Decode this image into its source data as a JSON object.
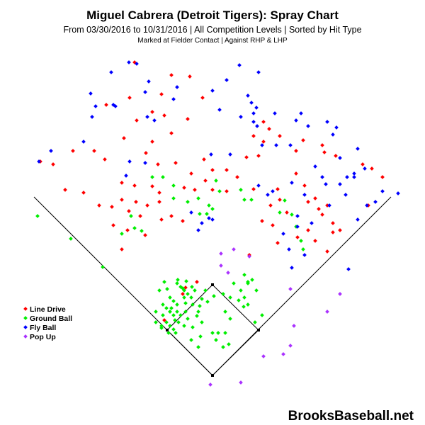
{
  "chart_data": {
    "type": "scatter",
    "title": "Miguel Cabrera (Detroit Tigers): Spray Chart",
    "subtitle": "From 03/30/2016 to 10/31/2016 | All Competition Levels | Sorted by Hit Type",
    "note": "Marked at Fielder Contact |   Against RHP & LHP",
    "watermark": "BrooksBaseball.net",
    "legend_position": "left",
    "series": [
      {
        "name": "Line Drive",
        "color": "#ff0000",
        "points": [
          [
            190,
            88
          ],
          [
            242,
            106
          ],
          [
            268,
            108
          ],
          [
            183,
            138
          ],
          [
            228,
            133
          ],
          [
            286,
            138
          ],
          [
            150,
            148
          ],
          [
            215,
            158
          ],
          [
            232,
            163
          ],
          [
            193,
            170
          ],
          [
            265,
            168
          ],
          [
            175,
            195
          ],
          [
            242,
            188
          ],
          [
            215,
            200
          ],
          [
            103,
            213
          ],
          [
            133,
            213
          ],
          [
            148,
            225
          ],
          [
            57,
            228
          ],
          [
            75,
            232
          ],
          [
            206,
            216
          ],
          [
            223,
            232
          ],
          [
            248,
            230
          ],
          [
            288,
            225
          ],
          [
            270,
            245
          ],
          [
            300,
            240
          ],
          [
            320,
            240
          ],
          [
            290,
            255
          ],
          [
            335,
            250
          ],
          [
            260,
            265
          ],
          [
            275,
            268
          ],
          [
            300,
            268
          ],
          [
            320,
            270
          ],
          [
            92,
            268
          ],
          [
            118,
            272
          ],
          [
            172,
            258
          ],
          [
            190,
            262
          ],
          [
            215,
            263
          ],
          [
            140,
            290
          ],
          [
            158,
            292
          ],
          [
            182,
            298
          ],
          [
            198,
            305
          ],
          [
            208,
            290
          ],
          [
            225,
            285
          ],
          [
            160,
            318
          ],
          [
            180,
            325
          ],
          [
            172,
            352
          ],
          [
            205,
            332
          ],
          [
            228,
            310
          ],
          [
            242,
            305
          ],
          [
            258,
            312
          ],
          [
            225,
            272
          ],
          [
            172,
            282
          ],
          [
            192,
            285
          ],
          [
            358,
            192
          ],
          [
            372,
            200
          ],
          [
            395,
            192
          ],
          [
            348,
            222
          ],
          [
            365,
            220
          ],
          [
            418,
            213
          ],
          [
            455,
            205
          ],
          [
            458,
            215
          ],
          [
            474,
            220
          ],
          [
            512,
            232
          ],
          [
            525,
            238
          ],
          [
            358,
            267
          ],
          [
            392,
            267
          ],
          [
            382,
            290
          ],
          [
            405,
            300
          ],
          [
            435,
            285
          ],
          [
            455,
            303
          ],
          [
            370,
            312
          ],
          [
            385,
            318
          ],
          [
            392,
            343
          ],
          [
            420,
            335
          ],
          [
            435,
            325
          ],
          [
            445,
            340
          ],
          [
            462,
            355
          ],
          [
            540,
            250
          ],
          [
            520,
            290
          ],
          [
            480,
            325
          ],
          [
            470,
            315
          ],
          [
            470,
            328
          ],
          [
            352,
            360
          ],
          [
            395,
            282
          ],
          [
            278,
            398
          ],
          [
            262,
            406
          ],
          [
            232,
            452
          ],
          [
            258,
            415
          ],
          [
            418,
            245
          ],
          [
            430,
            262
          ],
          [
            445,
            280
          ],
          [
            450,
            295
          ],
          [
            462,
            290
          ],
          [
            372,
            172
          ],
          [
            380,
            182
          ],
          [
            428,
            198
          ]
        ]
      },
      {
        "name": "Ground Ball",
        "color": "#00ee00",
        "points": [
          [
            53,
            305
          ],
          [
            100,
            337
          ],
          [
            145,
            377
          ],
          [
            185,
            305
          ],
          [
            190,
            322
          ],
          [
            200,
            326
          ],
          [
            172,
            330
          ],
          [
            215,
            250
          ],
          [
            230,
            250
          ],
          [
            245,
            262
          ],
          [
            245,
            280
          ],
          [
            265,
            285
          ],
          [
            280,
            280
          ],
          [
            295,
            290
          ],
          [
            300,
            295
          ],
          [
            282,
            302
          ],
          [
            292,
            302
          ],
          [
            305,
            255
          ],
          [
            310,
            270
          ],
          [
            340,
            268
          ],
          [
            345,
            282
          ],
          [
            355,
            282
          ],
          [
            395,
            300
          ],
          [
            402,
            283
          ],
          [
            412,
            303
          ],
          [
            418,
            320
          ],
          [
            425,
            340
          ],
          [
            428,
            352
          ],
          [
            345,
            388
          ],
          [
            350,
            398
          ],
          [
            302,
            418
          ],
          [
            330,
            400
          ],
          [
            340,
            410
          ],
          [
            345,
            420
          ],
          [
            350,
            430
          ],
          [
            360,
            455
          ],
          [
            370,
            445
          ],
          [
            315,
            415
          ],
          [
            325,
            420
          ],
          [
            250,
            400
          ],
          [
            255,
            405
          ],
          [
            260,
            410
          ],
          [
            265,
            415
          ],
          [
            270,
            420
          ],
          [
            240,
            420
          ],
          [
            245,
            425
          ],
          [
            250,
            430
          ],
          [
            235,
            435
          ],
          [
            240,
            440
          ],
          [
            245,
            445
          ],
          [
            230,
            445
          ],
          [
            235,
            455
          ],
          [
            240,
            460
          ],
          [
            245,
            465
          ],
          [
            238,
            470
          ],
          [
            252,
            455
          ],
          [
            260,
            460
          ],
          [
            265,
            450
          ],
          [
            272,
            430
          ],
          [
            280,
            440
          ],
          [
            285,
            455
          ],
          [
            290,
            410
          ],
          [
            275,
            410
          ],
          [
            225,
            410
          ],
          [
            230,
            430
          ],
          [
            228,
            460
          ],
          [
            220,
            455
          ],
          [
            250,
            440
          ],
          [
            262,
            440
          ],
          [
            300,
            470
          ],
          [
            305,
            480
          ],
          [
            318,
            470
          ],
          [
            315,
            490
          ],
          [
            270,
            480
          ],
          [
            280,
            490
          ],
          [
            272,
            462
          ],
          [
            318,
            440
          ],
          [
            325,
            450
          ],
          [
            262,
            428
          ],
          [
            255,
            445
          ],
          [
            248,
            470
          ],
          [
            240,
            440
          ],
          [
            236,
            408
          ],
          [
            283,
            475
          ],
          [
            308,
            470
          ],
          [
            323,
            486
          ],
          [
            260,
            420
          ],
          [
            285,
            422
          ],
          [
            350,
            400
          ],
          [
            356,
            395
          ],
          [
            362,
            410
          ],
          [
            344,
            433
          ],
          [
            337,
            424
          ],
          [
            247,
            452
          ],
          [
            242,
            435
          ],
          [
            228,
            463
          ],
          [
            220,
            440
          ],
          [
            232,
            398
          ],
          [
            251,
            395
          ],
          [
            263,
            397
          ],
          [
            271,
            405
          ],
          [
            258,
            407
          ],
          [
            278,
            446
          ],
          [
            282,
            432
          ],
          [
            293,
            426
          ]
        ]
      },
      {
        "name": "Fly Ball",
        "color": "#0000ff",
        "points": [
          [
            182,
            88
          ],
          [
            193,
            90
          ],
          [
            157,
            102
          ],
          [
            338,
            92
          ],
          [
            365,
            102
          ],
          [
            210,
            115
          ],
          [
            250,
            123
          ],
          [
            300,
            128
          ],
          [
            320,
            113
          ],
          [
            128,
            132
          ],
          [
            163,
            150
          ],
          [
            310,
            155
          ],
          [
            355,
            145
          ],
          [
            362,
            152
          ],
          [
            358,
            160
          ],
          [
            340,
            165
          ],
          [
            130,
            165
          ],
          [
            208,
            165
          ],
          [
            218,
            170
          ],
          [
            363,
            178
          ],
          [
            425,
            160
          ],
          [
            418,
            170
          ],
          [
            462,
            172
          ],
          [
            475,
            180
          ],
          [
            470,
            190
          ],
          [
            390,
            205
          ],
          [
            370,
            205
          ],
          [
            118,
            200
          ],
          [
            72,
            213
          ],
          [
            55,
            228
          ],
          [
            183,
            228
          ],
          [
            205,
            230
          ],
          [
            178,
            248
          ],
          [
            298,
            218
          ],
          [
            325,
            218
          ],
          [
            358,
            172
          ],
          [
            410,
            205
          ],
          [
            435,
            178
          ],
          [
            505,
            210
          ],
          [
            515,
            238
          ],
          [
            500,
            245
          ],
          [
            490,
            250
          ],
          [
            480,
            260
          ],
          [
            540,
            270
          ],
          [
            530,
            285
          ],
          [
            518,
            290
          ],
          [
            505,
            310
          ],
          [
            460,
            260
          ],
          [
            430,
            275
          ],
          [
            492,
            380
          ],
          [
            488,
            275
          ],
          [
            465,
            290
          ],
          [
            420,
            305
          ],
          [
            440,
            315
          ],
          [
            400,
            330
          ],
          [
            408,
            352
          ],
          [
            430,
            360
          ],
          [
            412,
            378
          ],
          [
            295,
            308
          ],
          [
            285,
            315
          ],
          [
            270,
            300
          ],
          [
            300,
            310
          ],
          [
            280,
            325
          ],
          [
            385,
            270
          ],
          [
            365,
            262
          ],
          [
            378,
            275
          ],
          [
            412,
            258
          ],
          [
            562,
            273
          ],
          [
            500,
            250
          ],
          [
            480,
            223
          ],
          [
            455,
            250
          ],
          [
            445,
            235
          ],
          [
            420,
            320
          ],
          [
            388,
            160
          ],
          [
            350,
            135
          ],
          [
            135,
            150
          ],
          [
            160,
            148
          ],
          [
            205,
            130
          ],
          [
            245,
            140
          ]
        ]
      },
      {
        "name": "Pop Up",
        "color": "#aa33ff",
        "points": [
          [
            312,
            358
          ],
          [
            312,
            375
          ],
          [
            330,
            352
          ],
          [
            352,
            362
          ],
          [
            322,
            385
          ],
          [
            410,
            408
          ],
          [
            480,
            415
          ],
          [
            462,
            440
          ],
          [
            415,
            460
          ],
          [
            410,
            488
          ],
          [
            372,
            503
          ],
          [
            400,
            500
          ],
          [
            297,
            543
          ],
          [
            340,
            540
          ]
        ]
      }
    ]
  }
}
